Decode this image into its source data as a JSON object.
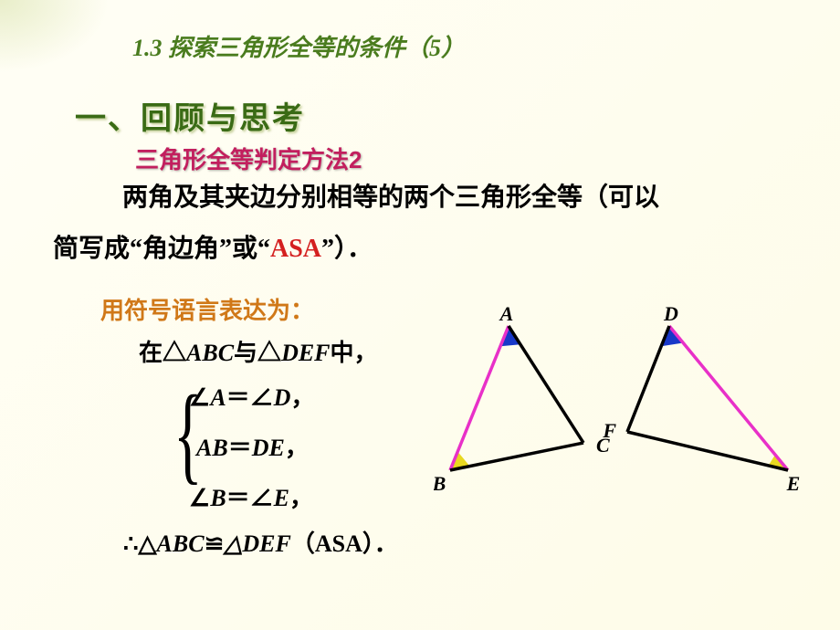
{
  "header": {
    "chapter": "1.3  探索三角形全等的条件（5）"
  },
  "section": {
    "title": "一、回顾与思考",
    "subtitle": "三角形全等判定方法2"
  },
  "bodyText": {
    "line1": "两角及其夹边分别相等的两个三角形全等（可以",
    "line2_pre": "简写成“角边角”或“",
    "line2_asa": "ASA",
    "line2_post": "”）．"
  },
  "symbolLang": {
    "title": "用符号语言表达为：",
    "inTriangle_pre": "在△",
    "inTriangle_t1": "ABC",
    "inTriangle_mid": "与△",
    "inTriangle_t2": "DEF",
    "inTriangle_post": "中，",
    "cond1_pre": "∠",
    "cond1_a": "A",
    "cond1_eq": "＝∠",
    "cond1_b": "D",
    "cond1_post": "，",
    "cond2_a": "AB",
    "cond2_eq": "＝",
    "cond2_b": "DE",
    "cond2_post": "，",
    "cond3_pre": "∠",
    "cond3_a": "B",
    "cond3_eq": "＝∠",
    "cond3_b": "E",
    "cond3_post": "，",
    "conclusion_pre": "∴△",
    "conclusion_t1": "ABC",
    "conclusion_cong": "≌",
    "conclusion_t2": "△DEF",
    "conclusion_post": "（ASA）．"
  },
  "triangles": {
    "labels": {
      "A": "A",
      "B": "B",
      "C": "C",
      "D": "D",
      "E": "E",
      "F": "F"
    },
    "colors": {
      "side_magenta": "#e830c8",
      "side_black": "#000000",
      "angle_blue": "#1838c8",
      "angle_yellow": "#e8d820",
      "label_color": "#000000"
    },
    "tri1": {
      "A": [
        82,
        22
      ],
      "B": [
        18,
        180
      ],
      "C": [
        164,
        150
      ]
    },
    "tri2": {
      "D": [
        258,
        22
      ],
      "E": [
        388,
        180
      ],
      "F": [
        212,
        138
      ]
    }
  }
}
